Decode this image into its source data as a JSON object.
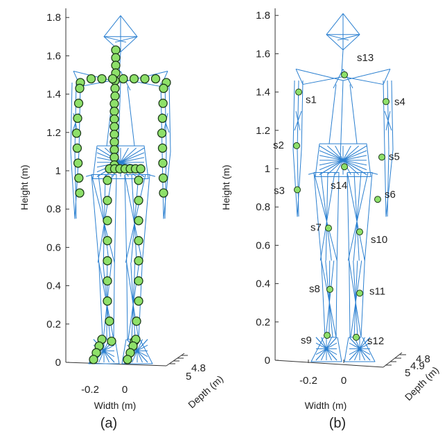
{
  "chart_data": [
    {
      "type": "scatter",
      "panel_caption": "(a)",
      "title": "",
      "xlabel": "Width (m)",
      "ylabel": "Height (m)",
      "zlabel": "Depth (m)",
      "ylim": [
        0,
        1.8
      ],
      "yticks": [
        "0",
        "0.2",
        "0.4",
        "0.6",
        "0.8",
        "1",
        "1.2",
        "1.4",
        "1.6",
        "1.8"
      ],
      "xticks": [
        "-0.2",
        "0"
      ],
      "zticks": [
        "5",
        "4.8"
      ],
      "grid": false,
      "marker_color": "#8ee06a",
      "mesh_color": "#2a7fd0",
      "description": "dense body-surface markers",
      "points": [
        {
          "x": -0.07,
          "y": 1.63
        },
        {
          "x": -0.07,
          "y": 1.59
        },
        {
          "x": -0.07,
          "y": 1.55
        },
        {
          "x": -0.07,
          "y": 1.51
        },
        {
          "x": -0.08,
          "y": 1.47
        },
        {
          "x": -0.08,
          "y": 1.43
        },
        {
          "x": -0.08,
          "y": 1.39
        },
        {
          "x": -0.09,
          "y": 1.35
        },
        {
          "x": -0.09,
          "y": 1.31
        },
        {
          "x": -0.09,
          "y": 1.27
        },
        {
          "x": -0.09,
          "y": 1.23
        },
        {
          "x": -0.09,
          "y": 1.19
        },
        {
          "x": -0.09,
          "y": 1.15
        },
        {
          "x": -0.09,
          "y": 1.11
        },
        {
          "x": -0.09,
          "y": 1.07
        },
        {
          "x": -0.09,
          "y": 1.03
        }
      ]
    },
    {
      "type": "scatter",
      "panel_caption": "(b)",
      "title": "",
      "xlabel": "Width (m)",
      "ylabel": "Height (m)",
      "zlabel": "Depth (m)",
      "ylim": [
        0,
        1.8
      ],
      "yticks": [
        "0",
        "0.2",
        "0.4",
        "0.6",
        "0.8",
        "1",
        "1.2",
        "1.4",
        "1.6",
        "1.8"
      ],
      "xticks": [
        "-0.2",
        "0"
      ],
      "zticks": [
        "5",
        "4.9",
        "4.8"
      ],
      "grid": false,
      "marker_color": "#8ee06a",
      "mesh_color": "#2a7fd0",
      "sensors": [
        {
          "label": "s1",
          "height": 1.4
        },
        {
          "label": "s2",
          "height": 1.12
        },
        {
          "label": "s3",
          "height": 0.89
        },
        {
          "label": "s4",
          "height": 1.35
        },
        {
          "label": "s5",
          "height": 1.06
        },
        {
          "label": "s6",
          "height": 0.84
        },
        {
          "label": "s7",
          "height": 0.69
        },
        {
          "label": "s8",
          "height": 0.37
        },
        {
          "label": "s9",
          "height": 0.13
        },
        {
          "label": "s10",
          "height": 0.67
        },
        {
          "label": "s11",
          "height": 0.35
        },
        {
          "label": "s12",
          "height": 0.12
        },
        {
          "label": "s13",
          "height": 1.49
        },
        {
          "label": "s14",
          "height": 1.01
        }
      ]
    }
  ]
}
